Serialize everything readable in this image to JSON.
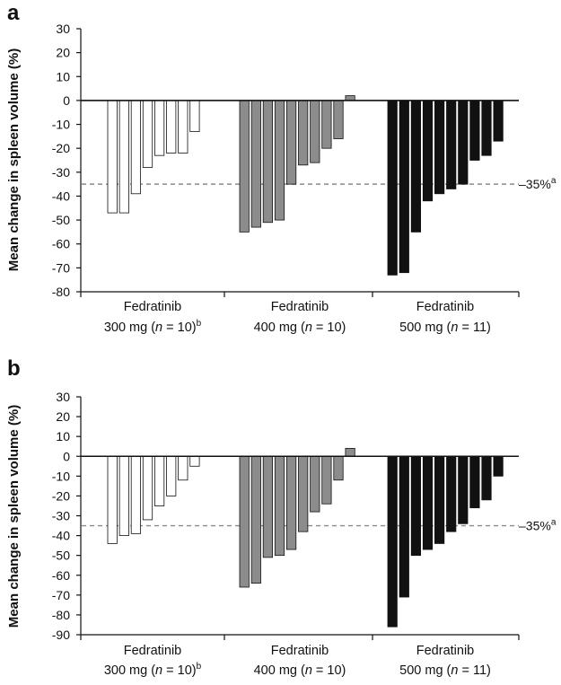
{
  "chart_data": [
    {
      "panel_label": "a",
      "type": "bar",
      "ylabel": "Mean change in spleen volume (%)",
      "ylim": [
        -80,
        30
      ],
      "yticks": [
        30,
        20,
        10,
        0,
        -10,
        -20,
        -30,
        -40,
        -50,
        -60,
        -70,
        -80
      ],
      "reference_line": {
        "value": -35,
        "label": "–35%",
        "label_sup": "a",
        "style": "dashed"
      },
      "groups": [
        {
          "name": "Fedratinib",
          "dose_prefix": "300 mg (",
          "n_var": "n",
          "n_rest": " = 10)",
          "sup": "b",
          "color": "#ffffff",
          "values": [
            -47,
            -47,
            -39,
            -28,
            -23,
            -22,
            -22,
            -13
          ]
        },
        {
          "name": "Fedratinib",
          "dose_prefix": "400 mg (",
          "n_var": "n",
          "n_rest": " = 10)",
          "sup": "",
          "color": "#8c8c8c",
          "values": [
            -55,
            -53,
            -51,
            -50,
            -35,
            -27,
            -26,
            -20,
            -16,
            2
          ]
        },
        {
          "name": "Fedratinib",
          "dose_prefix": "500 mg (",
          "n_var": "n",
          "n_rest": " = 11)",
          "sup": "",
          "color": "#111111",
          "values": [
            -73,
            -72,
            -55,
            -42,
            -39,
            -37,
            -35,
            -25,
            -23,
            -17
          ]
        }
      ]
    },
    {
      "panel_label": "b",
      "type": "bar",
      "ylabel": "Mean change in spleen volume (%)",
      "ylim": [
        -90,
        30
      ],
      "yticks": [
        30,
        20,
        10,
        0,
        -10,
        -20,
        -30,
        -40,
        -50,
        -60,
        -70,
        -80,
        -90
      ],
      "reference_line": {
        "value": -35,
        "label": "–35%",
        "label_sup": "a",
        "style": "dashed"
      },
      "groups": [
        {
          "name": "Fedratinib",
          "dose_prefix": "300 mg (",
          "n_var": "n",
          "n_rest": " = 10)",
          "sup": "b",
          "color": "#ffffff",
          "values": [
            -44,
            -40,
            -39,
            -32,
            -25,
            -20,
            -12,
            -5
          ]
        },
        {
          "name": "Fedratinib",
          "dose_prefix": "400 mg (",
          "n_var": "n",
          "n_rest": " = 10)",
          "sup": "",
          "color": "#8c8c8c",
          "values": [
            -66,
            -64,
            -51,
            -50,
            -47,
            -38,
            -28,
            -24,
            -12,
            4
          ]
        },
        {
          "name": "Fedratinib",
          "dose_prefix": "500 mg (",
          "n_var": "n",
          "n_rest": " = 11)",
          "sup": "",
          "color": "#111111",
          "values": [
            -86,
            -71,
            -50,
            -47,
            -44,
            -38,
            -34,
            -26,
            -22,
            -10
          ]
        }
      ]
    }
  ]
}
